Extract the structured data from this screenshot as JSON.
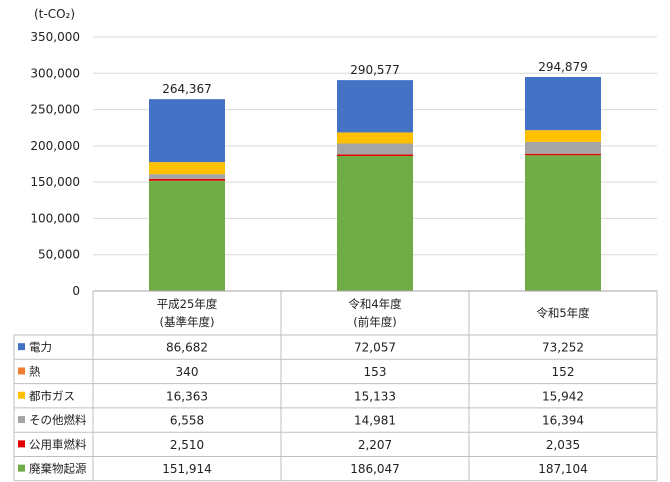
{
  "chart_data": {
    "type": "bar",
    "stacked": true,
    "unit_label": "(t-CO₂)",
    "ylim": [
      0,
      350000
    ],
    "yticks": [
      "0",
      "50,000",
      "100,000",
      "150,000",
      "200,000",
      "250,000",
      "300,000",
      "350,000"
    ],
    "grid": true,
    "legend": "table-rows",
    "categories": [
      [
        "平成25年度",
        "(基準年度)"
      ],
      [
        "令和4年度",
        "(前年度)"
      ],
      [
        "令和5年度"
      ]
    ],
    "totals": [
      "264,367",
      "290,577",
      "294,879"
    ],
    "series": [
      {
        "name": "廃棄物起源",
        "color": "#70ad47",
        "values": [
          151914,
          186047,
          187104
        ],
        "labels": [
          "151,914",
          "186,047",
          "187,104"
        ]
      },
      {
        "name": "公用車燃料",
        "color": "#e00000",
        "values": [
          2510,
          2207,
          2035
        ],
        "labels": [
          "2,510",
          "2,207",
          "2,035"
        ]
      },
      {
        "name": "その他燃料",
        "color": "#a5a5a5",
        "values": [
          6558,
          14981,
          16394
        ],
        "labels": [
          "6,558",
          "14,981",
          "16,394"
        ]
      },
      {
        "name": "都市ガス",
        "color": "#ffc000",
        "values": [
          16363,
          15133,
          15942
        ],
        "labels": [
          "16,363",
          "15,133",
          "15,942"
        ]
      },
      {
        "name": "熱",
        "color": "#ed7d31",
        "values": [
          340,
          153,
          152
        ],
        "labels": [
          "340",
          "153",
          "152"
        ]
      },
      {
        "name": "電力",
        "color": "#4472c4",
        "values": [
          86682,
          72057,
          73252
        ],
        "labels": [
          "86,682",
          "72,057",
          "73,252"
        ]
      }
    ],
    "table_row_order": [
      "電力",
      "熱",
      "都市ガス",
      "その他燃料",
      "公用車燃料",
      "廃棄物起源"
    ]
  }
}
